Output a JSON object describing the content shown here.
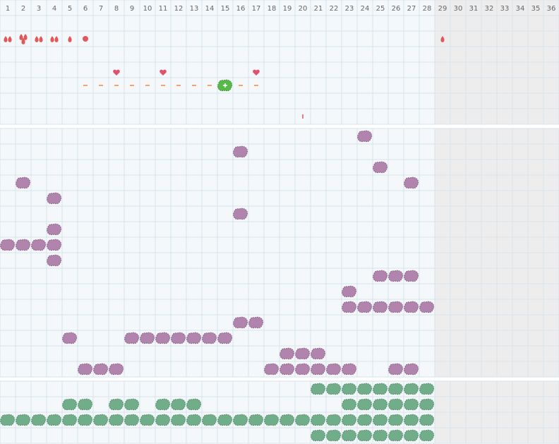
{
  "header": {
    "columns": [
      1,
      2,
      3,
      4,
      5,
      6,
      7,
      8,
      9,
      10,
      11,
      12,
      13,
      14,
      15,
      16,
      17,
      18,
      19,
      20,
      21,
      22,
      23,
      24,
      25,
      26,
      27,
      28,
      29,
      30,
      31,
      32,
      33,
      34,
      35,
      36
    ],
    "shaded_from": 29
  },
  "top": {
    "drops": [
      [
        1,
        2
      ],
      [
        2,
        3
      ],
      [
        3,
        2
      ],
      [
        4,
        2
      ],
      [
        5,
        1
      ],
      [
        29,
        1
      ]
    ],
    "dots": [
      6
    ],
    "hearts": [
      8,
      11,
      17
    ],
    "dashes": [
      6,
      7,
      8,
      9,
      10,
      11,
      12,
      13,
      14,
      16,
      17
    ],
    "active": [
      15
    ],
    "ticks": [
      20
    ]
  },
  "middle": {
    "rows": [
      [
        24
      ],
      [
        16
      ],
      [
        25
      ],
      [
        2,
        27
      ],
      [
        4
      ],
      [
        16
      ],
      [
        4
      ],
      [
        1,
        2,
        3,
        4
      ],
      [
        4
      ],
      [
        25,
        26,
        27
      ],
      [
        23
      ],
      [
        23,
        24,
        25,
        26,
        27,
        28
      ],
      [
        16,
        17
      ],
      [
        5,
        9,
        10,
        11,
        12,
        13,
        14,
        15
      ],
      [
        19,
        20,
        21
      ],
      [
        6,
        7,
        8,
        18,
        19,
        20,
        21,
        22,
        23,
        26,
        27
      ]
    ]
  },
  "bottom": {
    "rows": [
      [
        21,
        22,
        23,
        24,
        25,
        26,
        27,
        28
      ],
      [
        5,
        6,
        8,
        9,
        11,
        12,
        13,
        23,
        24,
        25,
        26,
        27,
        28
      ],
      [
        1,
        2,
        3,
        4,
        5,
        6,
        7,
        8,
        9,
        10,
        11,
        12,
        13,
        14,
        15,
        16,
        17,
        18,
        19,
        20,
        21,
        22,
        23,
        24,
        25,
        26,
        27,
        28
      ],
      [
        21,
        22,
        23,
        24,
        25,
        26,
        27,
        28
      ]
    ]
  }
}
